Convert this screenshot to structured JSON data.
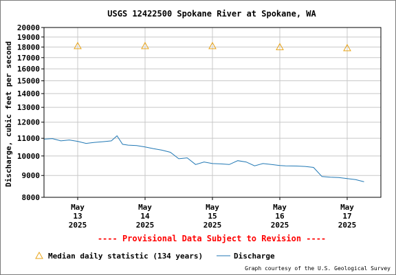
{
  "chart_data": {
    "type": "line",
    "title": "USGS 12422500 Spokane River at Spokane, WA",
    "ylabel": "Discharge, cubic feet per second",
    "xlabel": "",
    "ylim": [
      8000,
      20000
    ],
    "yscale": "log",
    "yticks": [
      8000,
      9000,
      10000,
      11000,
      12000,
      13000,
      14000,
      15000,
      16000,
      17000,
      18000,
      19000,
      20000
    ],
    "ytick_labels": [
      "8000",
      "9000",
      "10000",
      "11000",
      "12000",
      "13000",
      "14000",
      "15000",
      "16000",
      "17000",
      "18000",
      "19000",
      "20000"
    ],
    "xlim": [
      "2025-05-12T12:00",
      "2025-05-17T12:00"
    ],
    "xticks": [
      {
        "month": "May",
        "day": "13",
        "year": "2025",
        "x": "2025-05-13T00:00"
      },
      {
        "month": "May",
        "day": "14",
        "year": "2025",
        "x": "2025-05-14T00:00"
      },
      {
        "month": "May",
        "day": "15",
        "year": "2025",
        "x": "2025-05-15T00:00"
      },
      {
        "month": "May",
        "day": "16",
        "year": "2025",
        "x": "2025-05-16T00:00"
      },
      {
        "month": "May",
        "day": "17",
        "year": "2025",
        "x": "2025-05-17T00:00"
      }
    ],
    "grid": true,
    "legend_placement": "bottom",
    "series": [
      {
        "name": "Discharge",
        "color": "#1f77b4",
        "style": "line",
        "x": [
          "2025-05-12T12:00",
          "2025-05-12T15:00",
          "2025-05-12T18:00",
          "2025-05-12T21:00",
          "2025-05-13T00:00",
          "2025-05-13T03:00",
          "2025-05-13T06:00",
          "2025-05-13T09:00",
          "2025-05-13T12:00",
          "2025-05-13T14:00",
          "2025-05-13T16:00",
          "2025-05-13T18:00",
          "2025-05-13T21:00",
          "2025-05-14T00:00",
          "2025-05-14T03:00",
          "2025-05-14T06:00",
          "2025-05-14T09:00",
          "2025-05-14T12:00",
          "2025-05-14T15:00",
          "2025-05-14T18:00",
          "2025-05-14T21:00",
          "2025-05-15T00:00",
          "2025-05-15T03:00",
          "2025-05-15T06:00",
          "2025-05-15T09:00",
          "2025-05-15T12:00",
          "2025-05-15T15:00",
          "2025-05-15T18:00",
          "2025-05-15T21:00",
          "2025-05-16T00:00",
          "2025-05-16T02:00",
          "2025-05-16T06:00",
          "2025-05-16T09:00",
          "2025-05-16T12:00",
          "2025-05-16T15:00",
          "2025-05-16T18:00",
          "2025-05-16T21:00",
          "2025-05-17T00:00",
          "2025-05-17T03:00",
          "2025-05-17T06:00"
        ],
        "y": [
          10950,
          10980,
          10850,
          10900,
          10820,
          10700,
          10760,
          10800,
          10850,
          11150,
          10650,
          10600,
          10580,
          10500,
          10400,
          10320,
          10200,
          9850,
          9900,
          9550,
          9680,
          9600,
          9580,
          9550,
          9750,
          9680,
          9480,
          9600,
          9550,
          9500,
          9480,
          9470,
          9450,
          9400,
          8950,
          8920,
          8900,
          8850,
          8800,
          8700
        ]
      },
      {
        "name": "Median daily statistic (134 years)",
        "color": "#e8a317",
        "style": "triangle",
        "x": [
          "2025-05-13T00:00",
          "2025-05-14T00:00",
          "2025-05-15T00:00",
          "2025-05-16T00:00",
          "2025-05-17T00:00"
        ],
        "y": [
          18100,
          18100,
          18100,
          18000,
          17900
        ]
      }
    ],
    "annotations": [
      "---- Provisional Data Subject to Revision ----"
    ],
    "credit": "Graph courtesy of the U.S. Geological Survey"
  }
}
